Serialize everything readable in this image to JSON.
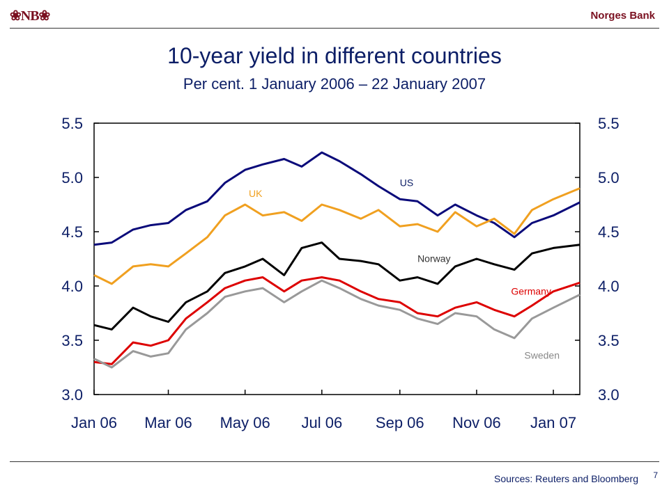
{
  "header": {
    "logo_text": "❀NB❀",
    "bank_name": "Norges Bank"
  },
  "footer": {
    "source": "Sources: Reuters and Bloomberg",
    "page_number": "7"
  },
  "chart_data": {
    "type": "line",
    "title": "10-year yield in different countries",
    "subtitle": "Per cent. 1 January 2006 – 22 January 2007",
    "xlabel": "",
    "ylabel": "",
    "x_tick_labels": [
      "Jan 06",
      "Mar 06",
      "May 06",
      "Jul 06",
      "Sep 06",
      "Nov 06",
      "Jan 07"
    ],
    "x_tick_dates": [
      "2006-01-01",
      "2006-03-01",
      "2006-05-01",
      "2006-07-01",
      "2006-09-01",
      "2006-11-01",
      "2007-01-01"
    ],
    "x_range": [
      "2006-01-01",
      "2007-01-22"
    ],
    "ylim": [
      3.0,
      5.5
    ],
    "y_ticks": [
      "3.0",
      "3.5",
      "4.0",
      "4.5",
      "5.0",
      "5.5"
    ],
    "grid": false,
    "dual_y_axis": true,
    "series": [
      {
        "name": "US",
        "color": "#0a0a7a",
        "x": [
          "2006-01-01",
          "2006-01-15",
          "2006-02-01",
          "2006-02-15",
          "2006-03-01",
          "2006-03-15",
          "2006-04-01",
          "2006-04-15",
          "2006-05-01",
          "2006-05-15",
          "2006-06-01",
          "2006-06-15",
          "2006-07-01",
          "2006-07-15",
          "2006-08-01",
          "2006-08-15",
          "2006-09-01",
          "2006-09-15",
          "2006-10-01",
          "2006-10-15",
          "2006-11-01",
          "2006-11-15",
          "2006-12-01",
          "2006-12-15",
          "2007-01-01",
          "2007-01-22"
        ],
        "values": [
          4.38,
          4.4,
          4.52,
          4.56,
          4.58,
          4.7,
          4.78,
          4.95,
          5.07,
          5.12,
          5.17,
          5.1,
          5.23,
          5.15,
          5.03,
          4.92,
          4.8,
          4.78,
          4.65,
          4.75,
          4.65,
          4.58,
          4.45,
          4.58,
          4.65,
          4.77
        ]
      },
      {
        "name": "UK",
        "color": "#f0a020",
        "x": [
          "2006-01-01",
          "2006-01-15",
          "2006-02-01",
          "2006-02-15",
          "2006-03-01",
          "2006-03-15",
          "2006-04-01",
          "2006-04-15",
          "2006-05-01",
          "2006-05-15",
          "2006-06-01",
          "2006-06-15",
          "2006-07-01",
          "2006-07-15",
          "2006-08-01",
          "2006-08-15",
          "2006-09-01",
          "2006-09-15",
          "2006-10-01",
          "2006-10-15",
          "2006-11-01",
          "2006-11-15",
          "2006-12-01",
          "2006-12-15",
          "2007-01-01",
          "2007-01-22"
        ],
        "values": [
          4.1,
          4.02,
          4.18,
          4.2,
          4.18,
          4.3,
          4.45,
          4.65,
          4.75,
          4.65,
          4.68,
          4.6,
          4.75,
          4.7,
          4.62,
          4.7,
          4.55,
          4.57,
          4.5,
          4.68,
          4.55,
          4.62,
          4.48,
          4.7,
          4.8,
          4.9
        ]
      },
      {
        "name": "Norway",
        "color": "#000000",
        "x": [
          "2006-01-01",
          "2006-01-15",
          "2006-02-01",
          "2006-02-15",
          "2006-03-01",
          "2006-03-15",
          "2006-04-01",
          "2006-04-15",
          "2006-05-01",
          "2006-05-15",
          "2006-06-01",
          "2006-06-15",
          "2006-07-01",
          "2006-07-15",
          "2006-08-01",
          "2006-08-15",
          "2006-09-01",
          "2006-09-15",
          "2006-10-01",
          "2006-10-15",
          "2006-11-01",
          "2006-11-15",
          "2006-12-01",
          "2006-12-15",
          "2007-01-01",
          "2007-01-22"
        ],
        "values": [
          3.64,
          3.6,
          3.8,
          3.72,
          3.67,
          3.85,
          3.95,
          4.12,
          4.18,
          4.25,
          4.1,
          4.35,
          4.4,
          4.25,
          4.23,
          4.2,
          4.05,
          4.08,
          4.02,
          4.18,
          4.25,
          4.2,
          4.15,
          4.3,
          4.35,
          4.38
        ]
      },
      {
        "name": "Germany",
        "color": "#dd0000",
        "x": [
          "2006-01-01",
          "2006-01-15",
          "2006-02-01",
          "2006-02-15",
          "2006-03-01",
          "2006-03-15",
          "2006-04-01",
          "2006-04-15",
          "2006-05-01",
          "2006-05-15",
          "2006-06-01",
          "2006-06-15",
          "2006-07-01",
          "2006-07-15",
          "2006-08-01",
          "2006-08-15",
          "2006-09-01",
          "2006-09-15",
          "2006-10-01",
          "2006-10-15",
          "2006-11-01",
          "2006-11-15",
          "2006-12-01",
          "2006-12-15",
          "2007-01-01",
          "2007-01-22"
        ],
        "values": [
          3.3,
          3.28,
          3.48,
          3.45,
          3.5,
          3.7,
          3.85,
          3.98,
          4.05,
          4.08,
          3.95,
          4.05,
          4.08,
          4.05,
          3.95,
          3.88,
          3.85,
          3.75,
          3.72,
          3.8,
          3.85,
          3.78,
          3.72,
          3.82,
          3.95,
          4.03
        ]
      },
      {
        "name": "Sweden",
        "color": "#999999",
        "x": [
          "2006-01-01",
          "2006-01-15",
          "2006-02-01",
          "2006-02-15",
          "2006-03-01",
          "2006-03-15",
          "2006-04-01",
          "2006-04-15",
          "2006-05-01",
          "2006-05-15",
          "2006-06-01",
          "2006-06-15",
          "2006-07-01",
          "2006-07-15",
          "2006-08-01",
          "2006-08-15",
          "2006-09-01",
          "2006-09-15",
          "2006-10-01",
          "2006-10-15",
          "2006-11-01",
          "2006-11-15",
          "2006-12-01",
          "2006-12-15",
          "2007-01-01",
          "2007-01-22"
        ],
        "values": [
          3.33,
          3.25,
          3.4,
          3.35,
          3.38,
          3.6,
          3.75,
          3.9,
          3.95,
          3.98,
          3.85,
          3.95,
          4.05,
          3.98,
          3.88,
          3.82,
          3.78,
          3.7,
          3.65,
          3.75,
          3.72,
          3.6,
          3.52,
          3.7,
          3.8,
          3.92
        ]
      }
    ],
    "label_colors": {
      "US": "#0c1e66",
      "UK": "#f0a020",
      "Norway": "#333333",
      "Germany": "#dd0000",
      "Sweden": "#888888"
    }
  }
}
